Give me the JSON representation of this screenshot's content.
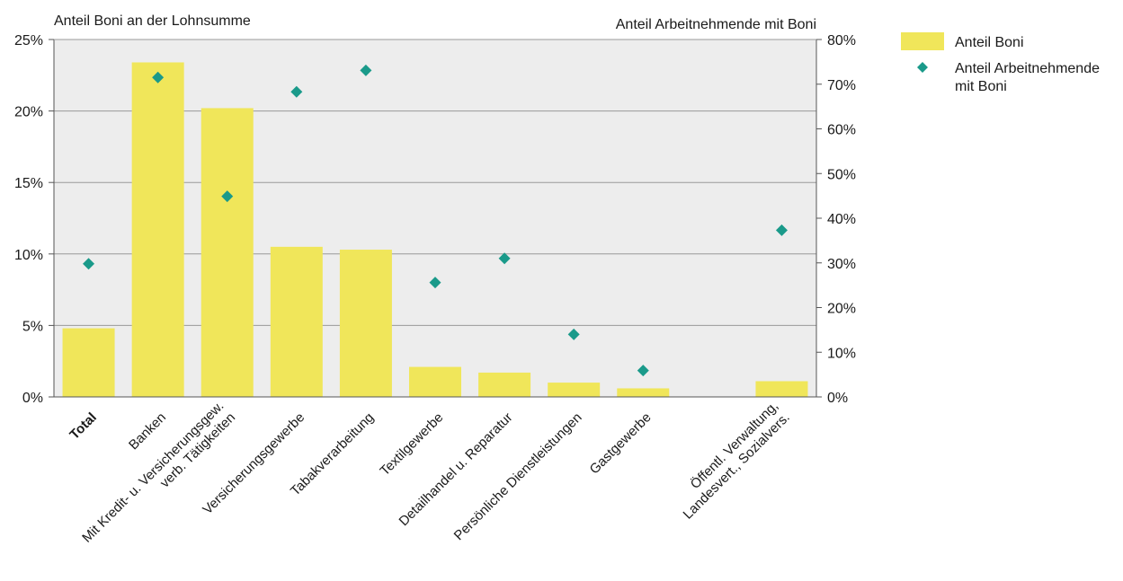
{
  "chart_data": {
    "type": "bar",
    "y_left_title": "Anteil Boni an der Lohnsumme",
    "y_right_title": "Anteil Arbeitnehmende mit Boni",
    "categories": [
      {
        "lines": [
          "Total"
        ],
        "bold": true
      },
      {
        "lines": [
          "Banken"
        ]
      },
      {
        "lines": [
          "Mit Kredit- u. Versicherungsgew.",
          "verb. Tätigkeiten"
        ]
      },
      {
        "lines": [
          "Versicherungsgewerbe"
        ]
      },
      {
        "lines": [
          "Tabakverarbeitung"
        ]
      },
      {
        "lines": [
          "Textilgewerbe"
        ]
      },
      {
        "lines": [
          "Detailhandel u. Reparatur"
        ]
      },
      {
        "lines": [
          "Persönliche Dienstleistungen"
        ]
      },
      {
        "lines": [
          "Gastgewerbe"
        ]
      },
      {
        "lines": []
      },
      {
        "lines": [
          "Öffentl. Verwaltung,",
          "Landesvert., Sozialvers."
        ]
      }
    ],
    "series": [
      {
        "name": "Anteil Boni",
        "type": "bar",
        "axis": "left",
        "color": "#f0e65a",
        "values": [
          4.8,
          23.4,
          20.2,
          10.5,
          10.3,
          2.1,
          1.7,
          1.0,
          0.6,
          null,
          1.1
        ]
      },
      {
        "name": "Anteil Arbeitnehmende mit Boni",
        "type": "scatter",
        "axis": "right",
        "color": "#1a9a8a",
        "values": [
          29.8,
          71.5,
          44.9,
          68.3,
          73.1,
          25.6,
          31.0,
          14.0,
          5.9,
          null,
          37.3
        ]
      }
    ],
    "y_left": {
      "min": 0,
      "max": 25,
      "ticks": [
        0,
        5,
        10,
        15,
        20,
        25
      ],
      "tick_labels": [
        "0%",
        "5%",
        "10%",
        "15%",
        "20%",
        "25%"
      ]
    },
    "y_right": {
      "min": 0,
      "max": 80,
      "ticks": [
        0,
        10,
        20,
        30,
        40,
        50,
        60,
        70,
        80
      ],
      "tick_labels": [
        "0%",
        "10%",
        "20%",
        "30%",
        "40%",
        "50%",
        "60%",
        "70%",
        "80%"
      ]
    },
    "legend": {
      "position": "top-right",
      "entries": [
        {
          "lines": [
            "Anteil Boni"
          ]
        },
        {
          "lines": [
            "Anteil Arbeitnehmende",
            "mit Boni"
          ]
        }
      ]
    },
    "grid": true,
    "plot_background": "#ededed"
  }
}
